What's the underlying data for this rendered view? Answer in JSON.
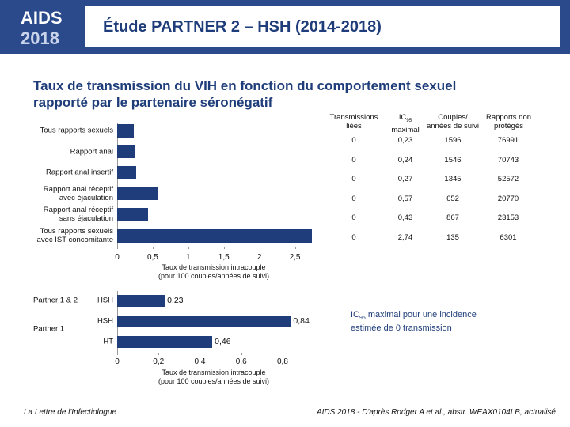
{
  "header": {
    "logo_top": "AIDS",
    "logo_bottom": "2018",
    "title": "Étude PARTNER 2 – HSH (2014-2018)"
  },
  "heading": "Taux de transmission du VIH en fonction du comportement sexuel\nrapporté par le partenaire séronégatif",
  "chart_data": [
    {
      "type": "hbar",
      "color": "#1f3d7a",
      "categories": [
        "Tous rapports sexuels",
        "Rapport anal",
        "Rapport anal insertif",
        "Rapport anal réceptif\navec éjaculation",
        "Rapport anal réceptif\nsans éjaculation",
        "Tous rapports sexuels\navec IST concomitante"
      ],
      "values": [
        0.23,
        0.24,
        0.27,
        0.57,
        0.43,
        2.74
      ],
      "xlim": [
        0,
        2.75
      ],
      "xticks": [
        0,
        {
          "value": 0.5,
          "label": "0,5"
        },
        1,
        {
          "value": 1.5,
          "label": "1,5"
        },
        2,
        {
          "value": 2.5,
          "label": "2,5"
        }
      ],
      "xlabel": "Taux de transmission intracouple\n(pour 100 couples/années de suivi)"
    },
    {
      "type": "hbar",
      "color": "#1f3d7a",
      "groups": [
        "Partner 1 & 2",
        "Partner 1",
        null
      ],
      "categories": [
        "HSH",
        "HSH",
        "HT"
      ],
      "values": [
        0.23,
        0.84,
        0.46
      ],
      "value_labels": [
        "0,23",
        "0,84",
        "0,46"
      ],
      "xlim": [
        0,
        0.85
      ],
      "xticks": [
        0,
        {
          "value": 0.2,
          "label": "0,2"
        },
        {
          "value": 0.4,
          "label": "0,4"
        },
        {
          "value": 0.6,
          "label": "0,6"
        },
        {
          "value": 0.8,
          "label": "0,8"
        }
      ],
      "xlabel": "Taux de transmission intracouple\n(pour 100 couples/années de suivi)"
    }
  ],
  "table": {
    "header": {
      "c0": "Transmissions\nliées",
      "c1_main": "IC",
      "c1_sub": "95",
      "c1_rest": "maximal",
      "c2": "Couples/\nannées de suivi",
      "c3": "Rapports non\nprotégés"
    },
    "rows": [
      [
        "0",
        "0,23",
        "1596",
        "76991"
      ],
      [
        "0",
        "0,24",
        "1546",
        "70743"
      ],
      [
        "0",
        "0,27",
        "1345",
        "52572"
      ],
      [
        "0",
        "0,57",
        "652",
        "20770"
      ],
      [
        "0",
        "0,43",
        "867",
        "23153"
      ],
      [
        "0",
        "2,74",
        "135",
        "6301"
      ]
    ]
  },
  "note": {
    "main": "IC",
    "sub": "95",
    "rest": " maximal pour une incidence\nestimée de 0 transmission"
  },
  "footer": {
    "left": "La Lettre de l'Infectiologue",
    "right": "AIDS 2018 - D'après Rodger A et al., abstr. WEAX0104LB, actualisé"
  }
}
